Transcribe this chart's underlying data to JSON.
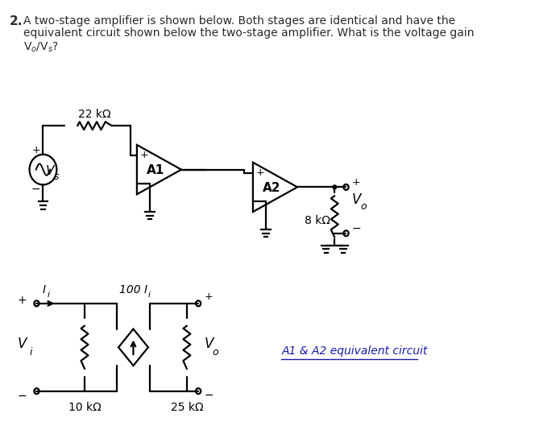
{
  "label_22k": "22 kΩ",
  "label_8k": "8 kΩ",
  "label_10k": "10 kΩ",
  "label_25k": "25 kΩ",
  "label_A1": "A1",
  "label_A2": "A2",
  "eq_circuit_label": "A1 & A2 equivalent circuit",
  "bg_color": "#ffffff",
  "line_color": "#000000",
  "text_color": "#2a2a2a",
  "fig_width": 6.64,
  "fig_height": 5.39
}
